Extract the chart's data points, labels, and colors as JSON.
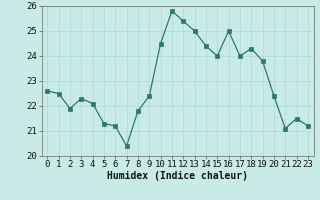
{
  "x": [
    0,
    1,
    2,
    3,
    4,
    5,
    6,
    7,
    8,
    9,
    10,
    11,
    12,
    13,
    14,
    15,
    16,
    17,
    18,
    19,
    20,
    21,
    22,
    23
  ],
  "y": [
    22.6,
    22.5,
    21.9,
    22.3,
    22.1,
    21.3,
    21.2,
    20.4,
    21.8,
    22.4,
    24.5,
    25.8,
    25.4,
    25.0,
    24.4,
    24.0,
    25.0,
    24.0,
    24.3,
    23.8,
    22.4,
    21.1,
    21.5,
    21.2
  ],
  "bg_color": "#c8ebe8",
  "line_color": "#2a7a6a",
  "marker_color": "#2a7a6a",
  "grid_major_color": "#b0d8d2",
  "grid_minor_color": "#c8e8e2",
  "xlabel": "Humidex (Indice chaleur)",
  "ylim": [
    20,
    26
  ],
  "xlim": [
    -0.5,
    23.5
  ],
  "yticks": [
    20,
    21,
    22,
    23,
    24,
    25,
    26
  ],
  "xticks": [
    0,
    1,
    2,
    3,
    4,
    5,
    6,
    7,
    8,
    9,
    10,
    11,
    12,
    13,
    14,
    15,
    16,
    17,
    18,
    19,
    20,
    21,
    22,
    23
  ],
  "xtick_labels": [
    "0",
    "1",
    "2",
    "3",
    "4",
    "5",
    "6",
    "7",
    "8",
    "9",
    "10",
    "11",
    "12",
    "13",
    "14",
    "15",
    "16",
    "17",
    "18",
    "19",
    "20",
    "21",
    "22",
    "23"
  ],
  "label_fontsize": 7,
  "tick_fontsize": 6.5
}
